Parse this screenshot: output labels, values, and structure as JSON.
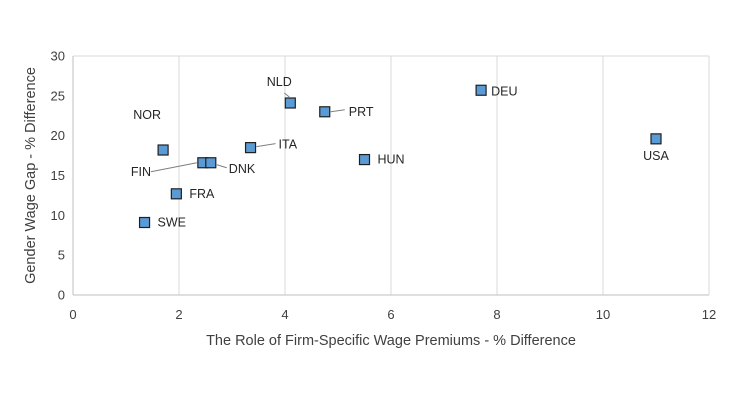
{
  "chart_data": {
    "type": "scatter",
    "title": "",
    "xlabel": "The Role of Firm-Specific Wage Premiums - % Difference",
    "ylabel": "Gender Wage Gap - % Difference",
    "xlim": [
      0,
      12
    ],
    "ylim": [
      0,
      30
    ],
    "xticks": [
      0,
      2,
      4,
      6,
      8,
      10,
      12
    ],
    "yticks": [
      0,
      5,
      10,
      15,
      20,
      25,
      30
    ],
    "grid": "vertical",
    "marker_color": "#5B9BD5",
    "marker_edge": "#1F1F1F",
    "points": [
      {
        "label": "NOR",
        "x": 1.7,
        "y": 18.2
      },
      {
        "label": "SWE",
        "x": 1.35,
        "y": 9.1
      },
      {
        "label": "FIN",
        "x": 2.45,
        "y": 16.6
      },
      {
        "label": "DNK",
        "x": 2.6,
        "y": 16.6
      },
      {
        "label": "FRA",
        "x": 1.95,
        "y": 12.7
      },
      {
        "label": "ITA",
        "x": 3.35,
        "y": 18.5
      },
      {
        "label": "NLD",
        "x": 4.1,
        "y": 24.1
      },
      {
        "label": "PRT",
        "x": 4.75,
        "y": 23.0
      },
      {
        "label": "HUN",
        "x": 5.5,
        "y": 17.0
      },
      {
        "label": "DEU",
        "x": 7.7,
        "y": 25.7
      },
      {
        "label": "USA",
        "x": 11.0,
        "y": 19.6
      }
    ]
  }
}
